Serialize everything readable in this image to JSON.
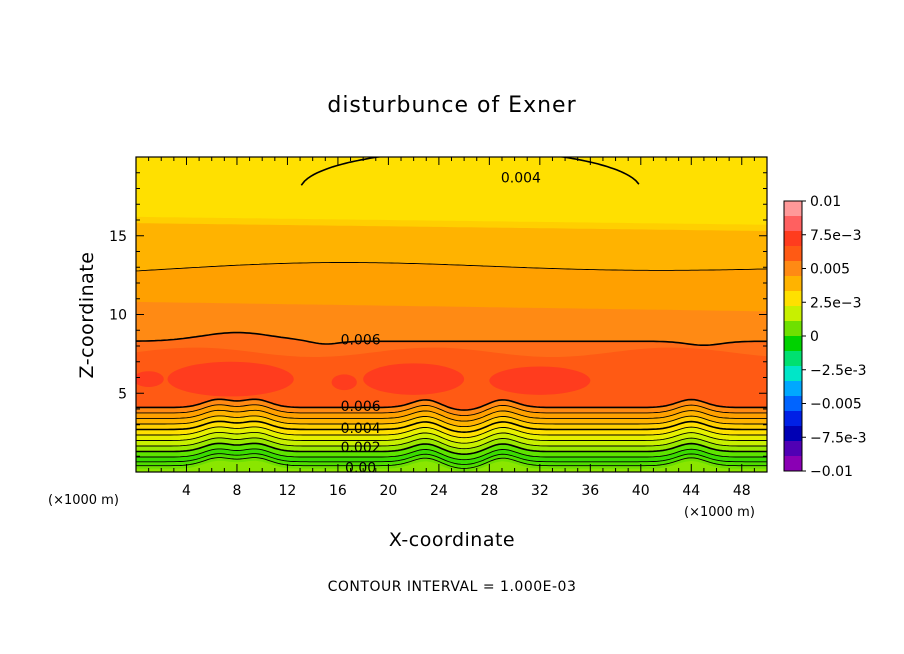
{
  "chart_data": {
    "type": "heatmap",
    "title": "disturbunce of Exner",
    "xlabel": "X-coordinate",
    "ylabel": "Z-coordinate",
    "x_unit": "(×1000 m)",
    "y_unit": "(×1000 m)",
    "footer": "CONTOUR INTERVAL = 1.000E-03",
    "xlim": [
      0,
      50
    ],
    "ylim": [
      0,
      20
    ],
    "x_ticks": [
      4,
      8,
      12,
      16,
      20,
      24,
      28,
      32,
      36,
      40,
      44,
      48
    ],
    "y_ticks": [
      5,
      10,
      15
    ],
    "colorbar": {
      "range": [
        -0.01,
        0.01
      ],
      "labels": [
        "0.01",
        "7.5e-3",
        "0.005",
        "2.5e-3",
        "0",
        "-2.5e-3",
        "-0.005",
        "-7.5e-3",
        "-0.01"
      ],
      "colors": [
        "#ff9999",
        "#ff6060",
        "#ff3c1e",
        "#ff5a14",
        "#ff8a14",
        "#ffb300",
        "#ffe000",
        "#c8f000",
        "#6ee000",
        "#00d200",
        "#00e070",
        "#00e6c8",
        "#00a8ff",
        "#0064ff",
        "#0020e6",
        "#0000b4",
        "#5000b4",
        "#8a00b4"
      ]
    },
    "bands": [
      {
        "upper": 0.004,
        "color": "#ffe000"
      },
      {
        "upper": 0.0045,
        "color": "#ffcf00"
      },
      {
        "upper": 0.005,
        "color": "#ffb300"
      },
      {
        "upper": 0.0055,
        "color": "#ffa000"
      },
      {
        "upper": 0.006,
        "color": "#ff8a14"
      },
      {
        "upper": 0.0065,
        "color": "#ff6c18"
      },
      {
        "upper": 0.007,
        "color": "#ff5a14"
      },
      {
        "upper": 0.0075,
        "color": "#ff3c1e"
      }
    ],
    "lower_bands": [
      "#8ae600",
      "#6ee000",
      "#4ede00",
      "#3adc00",
      "#5ee400",
      "#9ae800",
      "#c8f000",
      "#e6f000"
    ],
    "contour_labels": [
      {
        "text": "0.004",
        "x": 30.5,
        "z": 18.7
      },
      {
        "text": "0.006",
        "x": 17.8,
        "z": 8.4
      },
      {
        "text": "0.006",
        "x": 17.8,
        "z": 4.2
      },
      {
        "text": "0.004",
        "x": 17.8,
        "z": 2.8
      },
      {
        "text": "0.002",
        "x": 17.8,
        "z": 1.6
      },
      {
        "text": "0.00",
        "x": 17.8,
        "z": 0.3
      }
    ]
  }
}
